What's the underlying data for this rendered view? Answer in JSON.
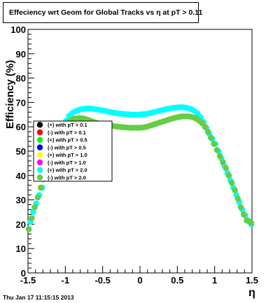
{
  "chart_data": {
    "type": "scatter",
    "title": "Effeciency wrt Geom for Global Tracks vs    η at pT > 0.11",
    "xlabel": "η",
    "ylabel": "Efficiency (%)",
    "xlim": [
      -1.5,
      1.5
    ],
    "ylim": [
      0,
      100
    ],
    "xticks": [
      "-1.5",
      "-1",
      "-0.5",
      "0",
      "0.5",
      "1",
      "1.5"
    ],
    "yticks": [
      "0",
      "10",
      "20",
      "30",
      "40",
      "50",
      "60",
      "70",
      "80",
      "90",
      "100"
    ],
    "grid": false,
    "legend_position": "left-middle",
    "series": [
      {
        "name": "(+) with pT > 0.1",
        "color": "#000000",
        "x": [],
        "y": []
      },
      {
        "name": "(-) with pT > 0.1",
        "color": "#ff0000",
        "x": [],
        "y": []
      },
      {
        "name": "(+) with pT > 0.5",
        "color": "#00ff00",
        "x": [],
        "y": []
      },
      {
        "name": "(-) with pT > 0.5",
        "color": "#0000ff",
        "x": [],
        "y": []
      },
      {
        "name": "(+) with pT > 1.0",
        "color": "#ffff00",
        "x": [],
        "y": []
      },
      {
        "name": "(-) with pT > 1.0",
        "color": "#ff00ff",
        "x": [],
        "y": []
      },
      {
        "name": "(+) with pT > 2.0",
        "color": "#00ffff",
        "x": [
          -1.47,
          -1.43,
          -1.39,
          -1.35,
          -1.31,
          -1.27,
          -1.23,
          -1.19,
          -1.15,
          -1.11,
          -1.07,
          -1.03,
          -0.99,
          -0.95,
          -0.91,
          -0.87,
          -0.83,
          -0.79,
          -0.75,
          -0.71,
          -0.67,
          -0.63,
          -0.59,
          -0.55,
          -0.51,
          -0.47,
          -0.43,
          -0.39,
          -0.35,
          -0.31,
          -0.27,
          -0.23,
          -0.19,
          -0.15,
          -0.11,
          -0.07,
          -0.03,
          0.01,
          0.05,
          0.09,
          0.13,
          0.17,
          0.21,
          0.25,
          0.29,
          0.33,
          0.37,
          0.41,
          0.45,
          0.49,
          0.53,
          0.57,
          0.61,
          0.65,
          0.69,
          0.73,
          0.77,
          0.81,
          0.85,
          0.89,
          0.93,
          0.97,
          1.01,
          1.05,
          1.09,
          1.13,
          1.17,
          1.21,
          1.25,
          1.29,
          1.33,
          1.37,
          1.41,
          1.45,
          1.49
        ],
        "y": [
          21,
          25,
          28.5,
          32,
          35,
          39,
          42.5,
          46,
          50,
          54,
          57.5,
          60,
          62.5,
          64.5,
          65.5,
          66.3,
          66.8,
          67.2,
          67.4,
          67.5,
          67.5,
          67.4,
          67.2,
          67.0,
          66.8,
          66.6,
          66.3,
          66.0,
          65.8,
          65.6,
          65.4,
          65.3,
          65.2,
          65.1,
          65.0,
          65.0,
          65.0,
          65.1,
          65.2,
          65.4,
          65.6,
          65.9,
          66.2,
          66.5,
          66.8,
          67.1,
          67.4,
          67.6,
          67.8,
          67.9,
          68.0,
          68.0,
          67.9,
          67.6,
          67.2,
          66.5,
          65.5,
          64,
          62,
          59.5,
          57,
          55,
          53,
          50,
          47,
          44,
          41,
          38,
          35,
          32,
          29,
          26,
          23.5,
          21.5,
          20
        ]
      },
      {
        "name": "(-) with pT > 2.0",
        "color": "#66cc44",
        "x": [
          -1.49,
          -1.45,
          -1.41,
          -1.37,
          -1.33,
          -1.29,
          -1.25,
          -1.21,
          -1.17,
          -1.13,
          -1.09,
          -1.05,
          -1.01,
          -0.97,
          -0.93,
          -0.89,
          -0.85,
          -0.81,
          -0.77,
          -0.73,
          -0.69,
          -0.65,
          -0.61,
          -0.57,
          -0.53,
          -0.49,
          -0.45,
          -0.41,
          -0.37,
          -0.33,
          -0.29,
          -0.25,
          -0.21,
          -0.17,
          -0.13,
          -0.09,
          -0.05,
          -0.01,
          0.03,
          0.07,
          0.11,
          0.15,
          0.19,
          0.23,
          0.27,
          0.31,
          0.35,
          0.39,
          0.43,
          0.47,
          0.51,
          0.55,
          0.59,
          0.63,
          0.67,
          0.71,
          0.75,
          0.79,
          0.83,
          0.87,
          0.91,
          0.95,
          0.99,
          1.03,
          1.07,
          1.11,
          1.15,
          1.19,
          1.23,
          1.27,
          1.31,
          1.35,
          1.39,
          1.43,
          1.47,
          1.49
        ],
        "y": [
          18,
          22.5,
          27,
          31,
          35,
          38.5,
          42,
          45.5,
          49,
          52.5,
          55.5,
          58,
          60,
          61.5,
          62.5,
          63.2,
          63.5,
          63.6,
          63.5,
          63.2,
          62.8,
          62.3,
          61.9,
          61.5,
          61.2,
          61.0,
          60.8,
          60.6,
          60.4,
          60.2,
          60.0,
          59.9,
          59.8,
          59.7,
          59.6,
          59.6,
          59.6,
          59.6,
          59.7,
          59.9,
          60.2,
          60.6,
          61.0,
          61.4,
          61.8,
          62.2,
          62.6,
          63.0,
          63.4,
          63.7,
          64.0,
          64.2,
          64.3,
          64.3,
          64.2,
          63.9,
          63.4,
          62.6,
          61.5,
          60,
          58,
          55.5,
          53,
          50.5,
          48,
          45.5,
          43,
          40,
          37,
          34,
          30.5,
          27,
          24,
          21.5,
          21,
          20.5
        ]
      }
    ]
  },
  "footer": {
    "timestamp": "Thu Jan 17 11:15:15 2013"
  }
}
